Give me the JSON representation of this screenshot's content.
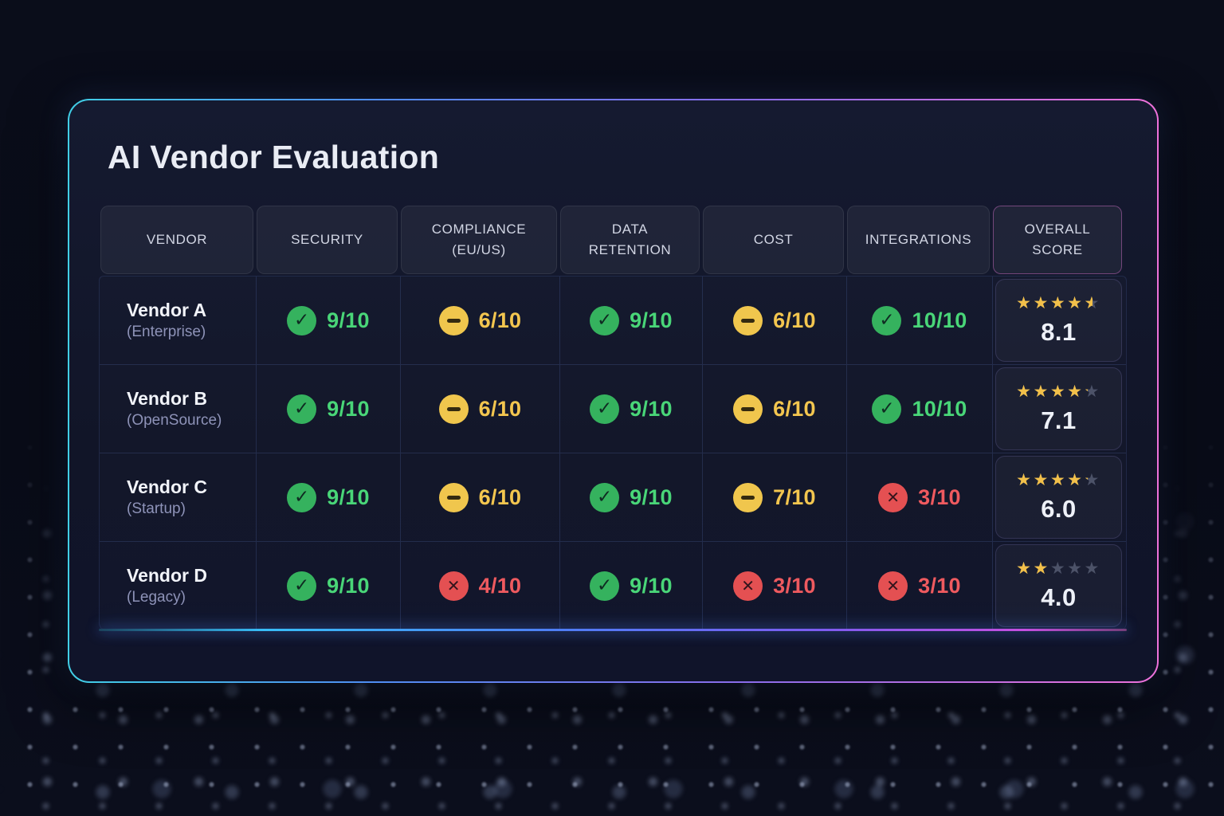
{
  "title": "AI Vendor Evaluation",
  "colors": {
    "status_pass_green": "#35b25e",
    "status_warn_yellow": "#f0c64d",
    "status_fail_red": "#e45052",
    "star_gold": "#f2c04a",
    "card_border_left": "#41cfe6",
    "card_border_right": "#ee71da"
  },
  "table": {
    "star_glyphs": "★★★★★",
    "headers": [
      {
        "label": "VENDOR"
      },
      {
        "label": "SECURITY"
      },
      {
        "label": "COMPLIANCE\n(EU/US)"
      },
      {
        "label": "DATA\nRETENTION"
      },
      {
        "label": "COST"
      },
      {
        "label": "INTEGRATIONS"
      },
      {
        "label": "OVERALL\nSCORE"
      }
    ],
    "rows": [
      {
        "vendor": {
          "name": "Vendor A",
          "category": "(Enterprise)"
        },
        "security": {
          "status": "check",
          "score": "9/10"
        },
        "compliance": {
          "status": "minus",
          "score": "6/10"
        },
        "data_retention": {
          "status": "check",
          "score": "9/10"
        },
        "cost": {
          "status": "minus",
          "score": "6/10"
        },
        "integrations": {
          "status": "check",
          "score": "10/10"
        },
        "overall": {
          "stars": 4.5,
          "score": "8.1"
        }
      },
      {
        "vendor": {
          "name": "Vendor B",
          "category": "(OpenSource)"
        },
        "security": {
          "status": "check",
          "score": "9/10"
        },
        "compliance": {
          "status": "minus",
          "score": "6/10"
        },
        "data_retention": {
          "status": "check",
          "score": "9/10"
        },
        "cost": {
          "status": "minus",
          "score": "6/10"
        },
        "integrations": {
          "status": "check",
          "score": "10/10"
        },
        "overall": {
          "stars": 4.2,
          "score": "7.1"
        }
      },
      {
        "vendor": {
          "name": "Vendor C",
          "category": "(Startup)"
        },
        "security": {
          "status": "check",
          "score": "9/10"
        },
        "compliance": {
          "status": "minus",
          "score": "6/10"
        },
        "data_retention": {
          "status": "check",
          "score": "9/10"
        },
        "cost": {
          "status": "minus",
          "score": "7/10"
        },
        "integrations": {
          "status": "cross",
          "score": "3/10"
        },
        "overall": {
          "stars": 4.2,
          "score": "6.0"
        }
      },
      {
        "vendor": {
          "name": "Vendor D",
          "category": "(Legacy)"
        },
        "security": {
          "status": "check",
          "score": "9/10"
        },
        "compliance": {
          "status": "cross",
          "score": "4/10"
        },
        "data_retention": {
          "status": "check",
          "score": "9/10"
        },
        "cost": {
          "status": "cross",
          "score": "3/10"
        },
        "integrations": {
          "status": "cross",
          "score": "3/10"
        },
        "overall": {
          "stars": 2.0,
          "score": "4.0"
        }
      }
    ]
  }
}
